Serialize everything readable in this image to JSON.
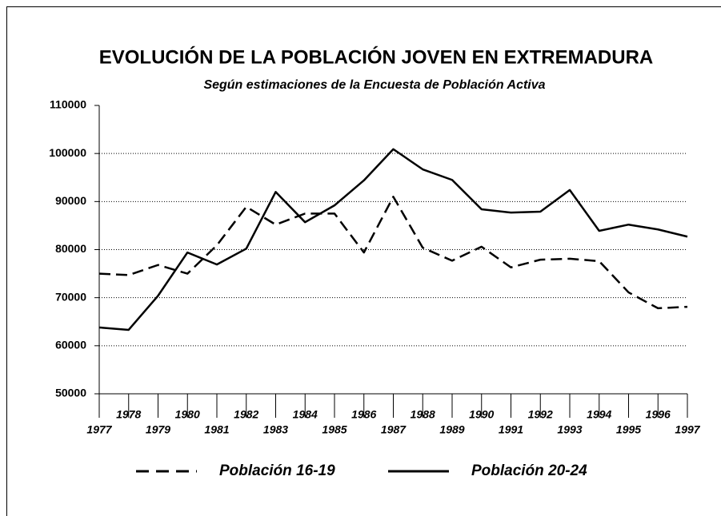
{
  "chart_data": {
    "type": "line",
    "title": "EVOLUCIÓN DE LA POBLACIÓN JOVEN EN EXTREMADURA",
    "subtitle": "Según estimaciones de la Encuesta de Población Activa",
    "x": [
      1977,
      1978,
      1979,
      1980,
      1981,
      1982,
      1983,
      1984,
      1985,
      1986,
      1987,
      1988,
      1989,
      1990,
      1991,
      1992,
      1993,
      1994,
      1995,
      1996,
      1997
    ],
    "xlim": [
      1977,
      1997
    ],
    "series": [
      {
        "name": "Población 16-19",
        "color": "#000000",
        "dash": true,
        "values": [
          75000,
          74700,
          76800,
          75000,
          80900,
          88900,
          85200,
          87500,
          87500,
          79400,
          91000,
          80400,
          77700,
          80600,
          76300,
          77900,
          78100,
          77600,
          71100,
          67800,
          68100
        ]
      },
      {
        "name": "Población 20-24",
        "color": "#000000",
        "dash": false,
        "values": [
          63800,
          63300,
          70400,
          79400,
          76900,
          80200,
          92000,
          85700,
          89200,
          94400,
          100900,
          96700,
          94500,
          88400,
          87700,
          87900,
          92400,
          83900,
          85200,
          84200,
          82700
        ]
      }
    ],
    "ylim": [
      50000,
      110000
    ],
    "yticks": [
      50000,
      60000,
      70000,
      80000,
      90000,
      100000,
      110000
    ],
    "grid": true
  }
}
